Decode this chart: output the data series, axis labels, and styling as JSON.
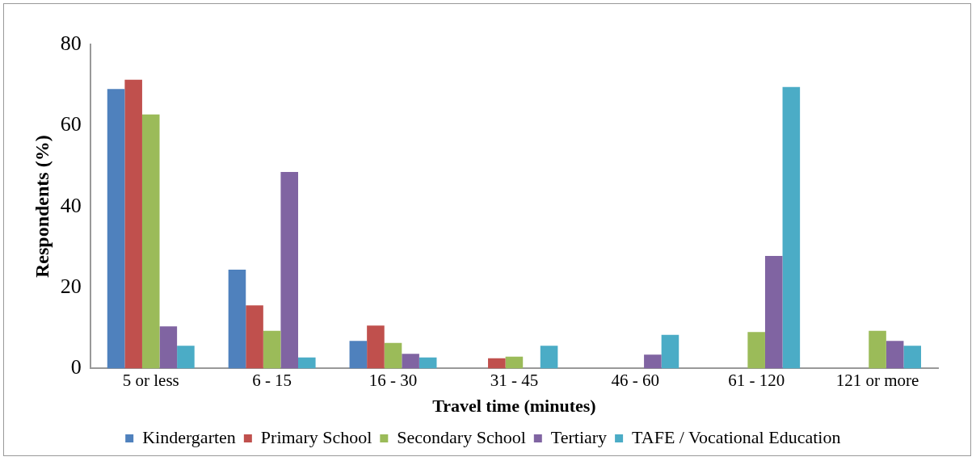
{
  "chart_data": {
    "type": "bar",
    "xlabel": "Travel time (minutes)",
    "ylabel": "Respondents (%)",
    "categories": [
      "5 or less",
      "6 - 15",
      "16 - 30",
      "31 - 45",
      "46 - 60",
      "61 - 120",
      "121 or more"
    ],
    "series": [
      {
        "name": "Kindergarten",
        "color": "#4f81bd",
        "values": [
          69,
          24.4,
          6.8,
          0,
          0,
          0,
          0
        ]
      },
      {
        "name": "Primary School",
        "color": "#c0504d",
        "values": [
          71.3,
          15.6,
          10.6,
          2.5,
          0,
          0,
          0
        ]
      },
      {
        "name": "Secondary School",
        "color": "#9bbb59",
        "values": [
          62.7,
          9.3,
          6.3,
          2.9,
          0,
          9,
          9.3
        ]
      },
      {
        "name": "Tertiary",
        "color": "#8064a2",
        "values": [
          10.4,
          48.5,
          3.6,
          0,
          3.4,
          27.8,
          6.8
        ]
      },
      {
        "name": "TAFE / Vocational Education",
        "color": "#4bacc6",
        "values": [
          5.6,
          2.7,
          2.7,
          5.6,
          8.3,
          69.5,
          5.6
        ]
      }
    ],
    "ylim": [
      0,
      80
    ],
    "yticks": [
      0,
      20,
      40,
      60,
      80
    ],
    "grid": false,
    "legend": "bottom"
  }
}
